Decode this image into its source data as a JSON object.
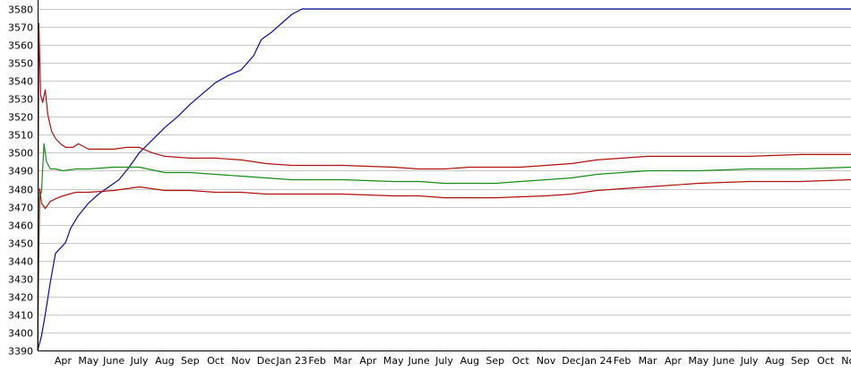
{
  "chart_data": {
    "type": "line",
    "title": "",
    "xlabel": "",
    "ylabel": "",
    "ylim": [
      3390,
      3580
    ],
    "y_ticks": [
      3390,
      3400,
      3410,
      3420,
      3430,
      3440,
      3450,
      3460,
      3470,
      3480,
      3490,
      3500,
      3510,
      3520,
      3530,
      3540,
      3550,
      3560,
      3570,
      3580
    ],
    "x_tick_labels": [
      "Apr",
      "May",
      "June",
      "July",
      "Aug",
      "Sep",
      "Oct",
      "Nov",
      "Dec",
      "Jan 23",
      "Feb",
      "Mar",
      "Apr",
      "May",
      "June",
      "July",
      "Aug",
      "Sep",
      "Oct",
      "Nov",
      "Dec",
      "Jan 24",
      "Feb",
      "Mar",
      "Apr",
      "May",
      "June",
      "July",
      "Aug",
      "Sep",
      "Oct",
      "Nov"
    ],
    "x_range_months": [
      0,
      32
    ],
    "grid": "horizontal",
    "legend": "none",
    "colors": {
      "blue": "#0a0aa0",
      "red": "#b01010",
      "green": "#1a8a1a",
      "grid": "#c8c8c8",
      "axis": "#000000"
    },
    "series": [
      {
        "color": "#0a0aa0",
        "points": [
          [
            0,
            3390
          ],
          [
            0.15,
            3398
          ],
          [
            0.3,
            3410
          ],
          [
            0.5,
            3428
          ],
          [
            0.7,
            3444
          ],
          [
            0.9,
            3447
          ],
          [
            1.1,
            3450
          ],
          [
            1.3,
            3458
          ],
          [
            1.6,
            3465
          ],
          [
            2.0,
            3472
          ],
          [
            2.4,
            3477
          ],
          [
            2.8,
            3481
          ],
          [
            3.2,
            3485
          ],
          [
            3.6,
            3492
          ],
          [
            4.0,
            3500
          ],
          [
            4.5,
            3507
          ],
          [
            5.0,
            3514
          ],
          [
            5.5,
            3520
          ],
          [
            6.0,
            3527
          ],
          [
            6.5,
            3533
          ],
          [
            7.0,
            3539
          ],
          [
            7.5,
            3543
          ],
          [
            8.0,
            3546
          ],
          [
            8.5,
            3554
          ],
          [
            8.8,
            3563
          ],
          [
            9.2,
            3567
          ],
          [
            9.6,
            3572
          ],
          [
            10.0,
            3577
          ],
          [
            10.4,
            3580
          ],
          [
            32,
            3580
          ]
        ]
      },
      {
        "color": "#b01010",
        "points": [
          [
            0,
            3390
          ],
          [
            0.05,
            3572
          ],
          [
            0.12,
            3532
          ],
          [
            0.2,
            3528
          ],
          [
            0.3,
            3535
          ],
          [
            0.4,
            3521
          ],
          [
            0.55,
            3512
          ],
          [
            0.7,
            3508
          ],
          [
            0.9,
            3505
          ],
          [
            1.1,
            3503
          ],
          [
            1.4,
            3503
          ],
          [
            1.6,
            3505
          ],
          [
            2.0,
            3502
          ],
          [
            2.5,
            3502
          ],
          [
            3.0,
            3502
          ],
          [
            3.5,
            3503
          ],
          [
            4.0,
            3503
          ],
          [
            4.5,
            3500
          ],
          [
            5.0,
            3498
          ],
          [
            6.0,
            3497
          ],
          [
            7.0,
            3497
          ],
          [
            8.0,
            3496
          ],
          [
            8.5,
            3495
          ],
          [
            9.0,
            3494
          ],
          [
            10.0,
            3493
          ],
          [
            12.0,
            3493
          ],
          [
            14.0,
            3492
          ],
          [
            15.0,
            3491
          ],
          [
            16.0,
            3491
          ],
          [
            17.0,
            3492
          ],
          [
            18.0,
            3492
          ],
          [
            19.0,
            3492
          ],
          [
            20.0,
            3493
          ],
          [
            21.0,
            3494
          ],
          [
            22.0,
            3496
          ],
          [
            23.0,
            3497
          ],
          [
            24.0,
            3498
          ],
          [
            26.0,
            3498
          ],
          [
            28.0,
            3498
          ],
          [
            30.0,
            3499
          ],
          [
            32,
            3499
          ]
        ]
      },
      {
        "color": "#b01010",
        "points": [
          [
            0,
            3390
          ],
          [
            0.08,
            3480
          ],
          [
            0.15,
            3472
          ],
          [
            0.3,
            3469
          ],
          [
            0.5,
            3473
          ],
          [
            0.8,
            3475
          ],
          [
            1.0,
            3476
          ],
          [
            1.5,
            3478
          ],
          [
            2.0,
            3478
          ],
          [
            3.0,
            3479
          ],
          [
            4.0,
            3481
          ],
          [
            5.0,
            3479
          ],
          [
            6.0,
            3479
          ],
          [
            7.0,
            3478
          ],
          [
            8.0,
            3478
          ],
          [
            9.0,
            3477
          ],
          [
            10.0,
            3477
          ],
          [
            12.0,
            3477
          ],
          [
            14.0,
            3476
          ],
          [
            15.0,
            3476
          ],
          [
            16.0,
            3475
          ],
          [
            17.0,
            3475
          ],
          [
            18.0,
            3475
          ],
          [
            20.0,
            3476
          ],
          [
            21.0,
            3477
          ],
          [
            22.0,
            3479
          ],
          [
            23.0,
            3480
          ],
          [
            24.0,
            3481
          ],
          [
            25.0,
            3482
          ],
          [
            26.0,
            3483
          ],
          [
            28.0,
            3484
          ],
          [
            30.0,
            3484
          ],
          [
            32,
            3485
          ]
        ]
      },
      {
        "color": "#1a8a1a",
        "points": [
          [
            0,
            3390
          ],
          [
            0.05,
            3475
          ],
          [
            0.15,
            3478
          ],
          [
            0.25,
            3505
          ],
          [
            0.35,
            3495
          ],
          [
            0.5,
            3491
          ],
          [
            0.7,
            3491
          ],
          [
            1.0,
            3490
          ],
          [
            1.5,
            3491
          ],
          [
            2.0,
            3491
          ],
          [
            3.0,
            3492
          ],
          [
            4.0,
            3492
          ],
          [
            5.0,
            3489
          ],
          [
            6.0,
            3489
          ],
          [
            7.0,
            3488
          ],
          [
            8.0,
            3487
          ],
          [
            9.0,
            3486
          ],
          [
            10.0,
            3485
          ],
          [
            12.0,
            3485
          ],
          [
            14.0,
            3484
          ],
          [
            15.0,
            3484
          ],
          [
            16.0,
            3483
          ],
          [
            17.0,
            3483
          ],
          [
            18.0,
            3483
          ],
          [
            19.0,
            3484
          ],
          [
            20.0,
            3485
          ],
          [
            21.0,
            3486
          ],
          [
            22.0,
            3488
          ],
          [
            23.0,
            3489
          ],
          [
            24.0,
            3490
          ],
          [
            26.0,
            3490
          ],
          [
            28.0,
            3491
          ],
          [
            30.0,
            3491
          ],
          [
            32,
            3492
          ]
        ]
      }
    ]
  }
}
